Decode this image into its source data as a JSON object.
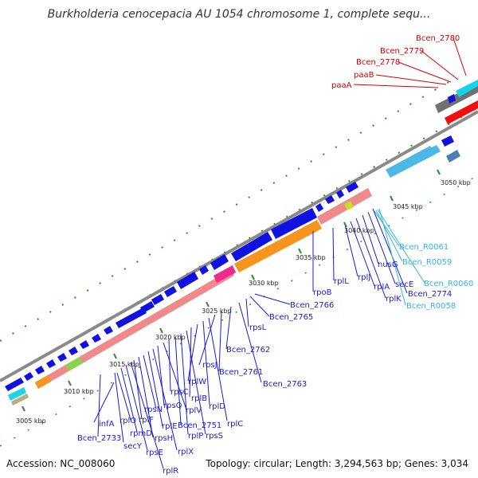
{
  "title": "Burkholderia cenocepacia AU 1054 chromosome 1, complete sequ...",
  "footer": {
    "accession": "Accession: NC_008060",
    "summary": "Topology: circular; Length: 3,294,563 bp; Genes: 3,034"
  },
  "colors": {
    "gene_label": "#1a1adb",
    "trna_label": "#33b5e5",
    "red_label": "#d40000",
    "forward_gene": "#1010e0",
    "ribosomal_block": "#f08a8a",
    "rpoB_block": "#f7941d",
    "backbone": "#808080"
  },
  "scale_ticks": [
    "3005 kbp",
    "3010 kbp",
    "3015 kbp",
    "3020 kbp",
    "3025 kbp",
    "3030 kbp",
    "3035 kbp",
    "3040 kbp",
    "3045 kbp",
    "3050 kbp"
  ],
  "top_labels": [
    "Bcen_2780",
    "Bcen_2779",
    "Bcen_2778",
    "paaB",
    "paaA"
  ],
  "gene_labels": [
    "infA",
    "Bcen_2733",
    "secY",
    "rplO",
    "rpmD",
    "rpsE",
    "rplR",
    "rplF",
    "rpsH",
    "rpsN",
    "rplE",
    "rplX",
    "rpsQ",
    "rplV",
    "rpsC",
    "Bcen_2751",
    "rplP",
    "rpsS",
    "rplB",
    "rplW",
    "rplD",
    "rplC",
    "rpsJ",
    "Bcen_2761",
    "Bcen_2762",
    "Bcen_2763",
    "rpsL",
    "Bcen_2765",
    "Bcen_2766",
    "rpoB",
    "rplL",
    "rplJ",
    "rplA",
    "rplK",
    "nusG",
    "secE",
    "Bcen_2774"
  ],
  "trna_labels": [
    "Bcen_R0061",
    "Bcen_R0059",
    "Bcen_R0060",
    "Bcen_R0058"
  ]
}
